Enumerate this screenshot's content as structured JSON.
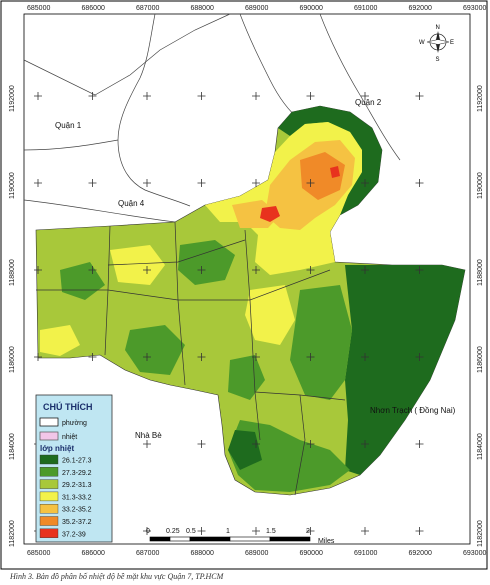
{
  "map": {
    "x_ticks": [
      "685000",
      "686000",
      "687000",
      "688000",
      "689000",
      "690000",
      "691000",
      "692000",
      "693000"
    ],
    "y_ticks": [
      "1192000",
      "1190000",
      "1188000",
      "1186000",
      "1184000",
      "1182000"
    ],
    "places": {
      "quan1": "Quận 1",
      "quan2": "Quận 2",
      "quan4": "Quận 4",
      "nha_be": "Nhà Bè",
      "nhon_trach": "Nhơn Trạch ( Đồng Nai)"
    },
    "north_arrow": {
      "n": "N",
      "s": "S",
      "e": "E",
      "w": "W"
    }
  },
  "legend": {
    "title": "CHÚ THÍCH",
    "items": [
      {
        "label": "phường",
        "color": "#ffffff",
        "border": "#000000"
      },
      {
        "label": "nhiệt",
        "color": "#f2c6e8",
        "border": "#555555"
      }
    ],
    "sub_title": "lớp nhiệt",
    "classes": [
      {
        "label": "26.1-27.3",
        "color": "#1e6b1e"
      },
      {
        "label": "27.3-29.2",
        "color": "#4c9a2a"
      },
      {
        "label": "29.2-31.3",
        "color": "#a8c83a"
      },
      {
        "label": "31.3-33.2",
        "color": "#f2f24a"
      },
      {
        "label": "33.2-35.2",
        "color": "#f5c242"
      },
      {
        "label": "35.2-37.2",
        "color": "#f08a28"
      },
      {
        "label": "37.2-39",
        "color": "#e8321e"
      }
    ]
  },
  "scale_bar": {
    "labels": [
      "0",
      "0.25",
      "0.5",
      "1",
      "1.5",
      "2"
    ],
    "unit": "Miles"
  },
  "caption": "Hình 3. Bản đồ phân bố nhiệt độ bề mặt khu vực Quận 7, TP.HCM"
}
